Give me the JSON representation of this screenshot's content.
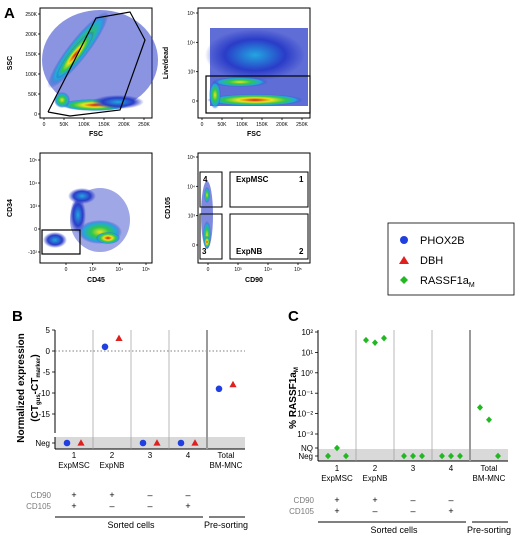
{
  "panel_labels": {
    "A": "A",
    "B": "B",
    "C": "C"
  },
  "flow": {
    "p1": {
      "xlabel": "FSC",
      "ylabel": "SSC",
      "xticks": [
        "0",
        "50K",
        "100K",
        "150K",
        "200K",
        "250K"
      ],
      "yticks": [
        "0",
        "50K",
        "100K",
        "150K",
        "200K",
        "250K"
      ]
    },
    "p2": {
      "xlabel": "FSC",
      "ylabel": "Live/dead",
      "xticks": [
        "0",
        "50K",
        "100K",
        "150K",
        "200K",
        "250K"
      ],
      "yticks": [
        "0",
        "10³",
        "10⁴",
        "10⁵"
      ]
    },
    "p3": {
      "xlabel": "CD45",
      "ylabel": "CD34",
      "xticks": [
        "0",
        "10³",
        "10⁴",
        "10⁵"
      ],
      "yticks": [
        "-10²",
        "0",
        "10³",
        "10⁴",
        "10⁵"
      ]
    },
    "p4": {
      "xlabel": "CD90",
      "ylabel": "CD105",
      "xticks": [
        "0",
        "10³",
        "10⁴",
        "10⁵"
      ],
      "yticks": [
        "0",
        "10³",
        "10⁴",
        "10⁵"
      ],
      "gates": [
        {
          "num": "4",
          "name": ""
        },
        {
          "num": "1",
          "name": "ExpMSC"
        },
        {
          "num": "3",
          "name": ""
        },
        {
          "num": "2",
          "name": "ExpNB"
        }
      ]
    }
  },
  "legend": [
    {
      "name": "PHOX2B",
      "color": "#1f3fe0",
      "marker": "circle"
    },
    {
      "name": "DBH",
      "color": "#e01f1f",
      "marker": "triangle"
    },
    {
      "name": "RASSF1a",
      "sub": "M",
      "color": "#22b822",
      "marker": "diamond"
    }
  ],
  "chart_data": [
    {
      "type": "scatter",
      "panel": "B",
      "ylabel": "Normalized expression",
      "ylabel2": "(CT",
      "ylabel2_sub1": "gus",
      "ylabel2_mid": "-CT",
      "ylabel2_sub2": "marker",
      "ylabel2_end": ")",
      "ylim": [
        -15,
        5
      ],
      "yticks": [
        "5",
        "0",
        "-5",
        "-10",
        "-15",
        "Neg"
      ],
      "categories": [
        {
          "num": "1",
          "name": "ExpMSC"
        },
        {
          "num": "2",
          "name": "ExpNB"
        },
        {
          "num": "3",
          "name": ""
        },
        {
          "num": "4",
          "name": ""
        },
        {
          "num": "Total",
          "name": "BM-MNC"
        }
      ],
      "series": [
        {
          "name": "PHOX2B",
          "values": [
            "Neg",
            1,
            "Neg",
            "Neg",
            -9
          ]
        },
        {
          "name": "DBH",
          "values": [
            "Neg",
            3,
            "Neg",
            "Neg",
            -8
          ]
        }
      ]
    },
    {
      "type": "scatter",
      "panel": "C",
      "ylabel": "% RASSF1a",
      "ylabel_sub": "M",
      "yscale": "log",
      "ylim": [
        0.001,
        100
      ],
      "yticks": [
        "10²",
        "10¹",
        "10⁰",
        "10⁻¹",
        "10⁻²",
        "10⁻³",
        "NQ",
        "Neg"
      ],
      "categories": [
        {
          "num": "1",
          "name": "ExpMSC"
        },
        {
          "num": "2",
          "name": "ExpNB"
        },
        {
          "num": "3",
          "name": ""
        },
        {
          "num": "4",
          "name": ""
        },
        {
          "num": "Total",
          "name": "BM-MNC"
        }
      ],
      "series": [
        {
          "name": "RASSF1a",
          "values": [
            [
              "Neg",
              "NQ",
              "Neg"
            ],
            [
              40,
              30,
              50
            ],
            [
              "Neg",
              "Neg",
              "Neg"
            ],
            [
              "Neg",
              "Neg",
              "Neg"
            ],
            [
              0.02,
              0.005,
              "Neg"
            ]
          ]
        }
      ]
    }
  ],
  "markers_table": {
    "rows": [
      {
        "label": "CD90",
        "values": [
          "+",
          "+",
          "–",
          "–"
        ]
      },
      {
        "label": "CD105",
        "values": [
          "+",
          "–",
          "–",
          "+"
        ]
      }
    ],
    "groups": [
      "Sorted cells",
      "Pre-sorting"
    ]
  }
}
